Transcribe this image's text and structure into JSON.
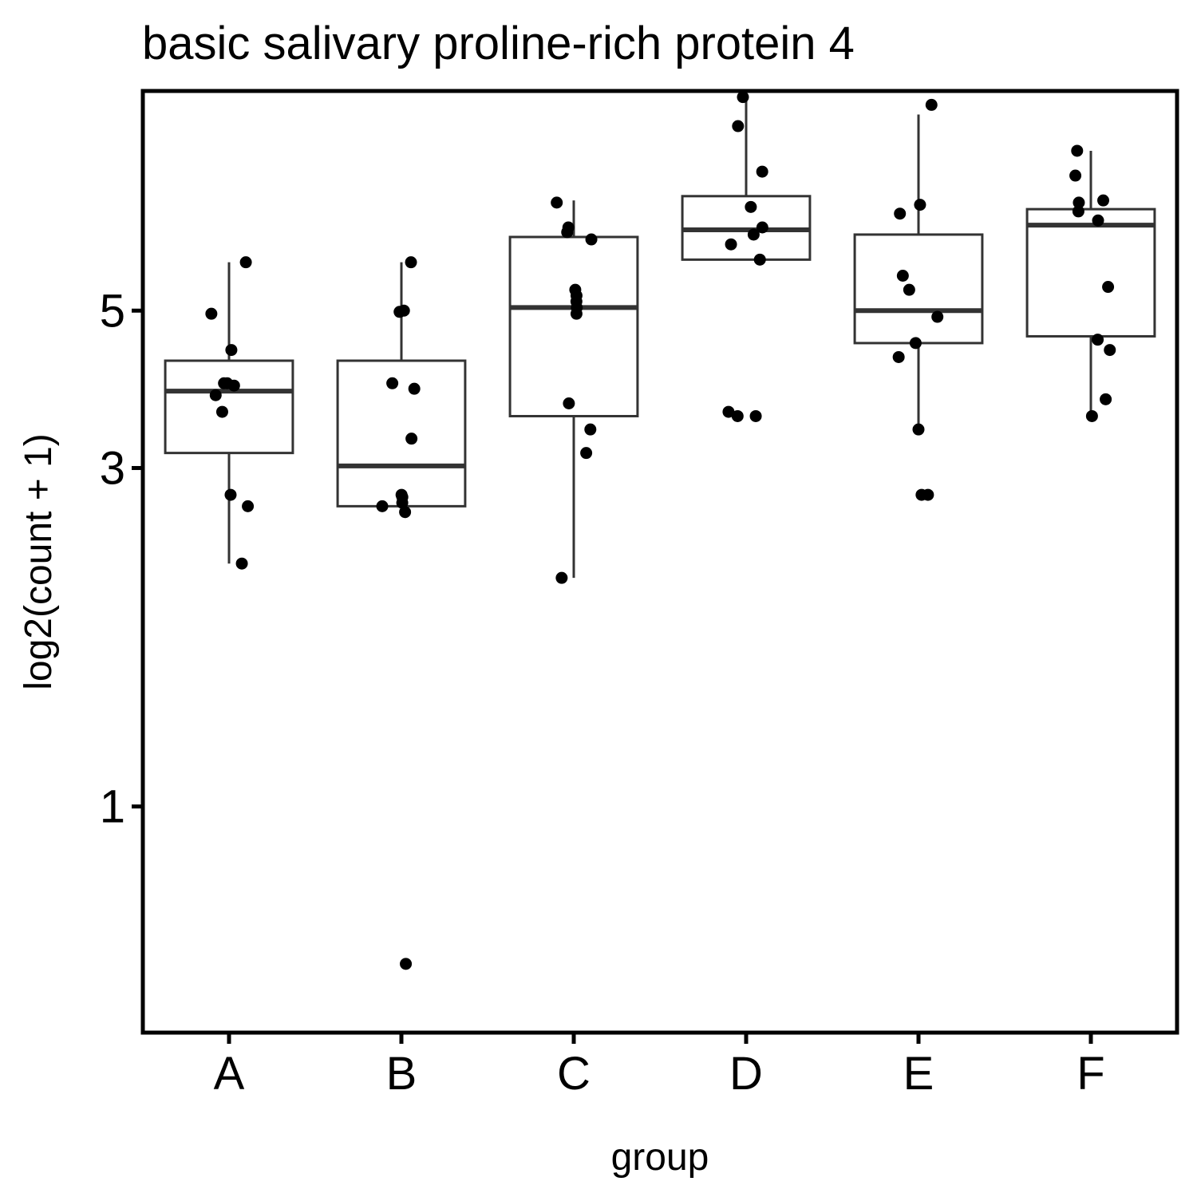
{
  "chart_data": {
    "type": "box",
    "title": "basic salivary proline-rich protein 4",
    "xlabel": "group",
    "ylabel": "log2(count + 1)",
    "yscale": "log",
    "ylim": [
      0.48,
      10.2
    ],
    "yticks": [
      1,
      3,
      5
    ],
    "ytick_labels": [
      "1",
      "3",
      "5"
    ],
    "grid": false,
    "categories": [
      "A",
      "B",
      "C",
      "D",
      "E",
      "F"
    ],
    "boxes": [
      {
        "group": "A",
        "whisker_low": 2.2,
        "q1": 3.15,
        "median": 3.85,
        "q3": 4.25,
        "whisker_high": 5.85
      },
      {
        "group": "B",
        "whisker_low": 2.65,
        "q1": 2.65,
        "median": 3.02,
        "q3": 4.25,
        "whisker_high": 5.85
      },
      {
        "group": "C",
        "whisker_low": 2.1,
        "q1": 3.55,
        "median": 5.05,
        "q3": 6.35,
        "whisker_high": 7.15
      },
      {
        "group": "D",
        "whisker_low": 5.9,
        "q1": 5.9,
        "median": 6.5,
        "q3": 7.25,
        "whisker_high": 10.0
      },
      {
        "group": "E",
        "whisker_low": 3.4,
        "q1": 4.5,
        "median": 5.0,
        "q3": 6.4,
        "whisker_high": 9.45
      },
      {
        "group": "F",
        "whisker_low": 3.5,
        "q1": 4.6,
        "median": 6.6,
        "q3": 6.95,
        "whisker_high": 8.4
      }
    ],
    "points": [
      {
        "group": "A",
        "values": [
          5.85,
          4.95,
          4.4,
          3.95,
          3.95,
          3.92,
          3.8,
          3.6,
          2.75,
          2.65,
          2.2
        ]
      },
      {
        "group": "B",
        "values": [
          5.85,
          5.0,
          4.98,
          3.95,
          3.88,
          3.3,
          2.75,
          2.73,
          2.68,
          2.65,
          2.6,
          0.6
        ]
      },
      {
        "group": "C",
        "values": [
          7.1,
          6.55,
          6.45,
          6.3,
          5.35,
          5.25,
          5.15,
          5.05,
          4.95,
          3.7,
          3.4,
          3.15,
          2.1
        ]
      },
      {
        "group": "D",
        "values": [
          10.0,
          9.1,
          7.85,
          7.0,
          6.55,
          6.4,
          6.2,
          5.9,
          3.6,
          3.55,
          3.55
        ]
      },
      {
        "group": "E",
        "values": [
          9.75,
          7.05,
          6.85,
          5.6,
          5.35,
          4.9,
          4.5,
          4.3,
          3.4,
          2.75,
          2.75
        ]
      },
      {
        "group": "F",
        "values": [
          8.4,
          7.75,
          7.15,
          7.1,
          6.9,
          6.7,
          5.4,
          4.55,
          4.4,
          3.75,
          3.55
        ]
      }
    ]
  }
}
